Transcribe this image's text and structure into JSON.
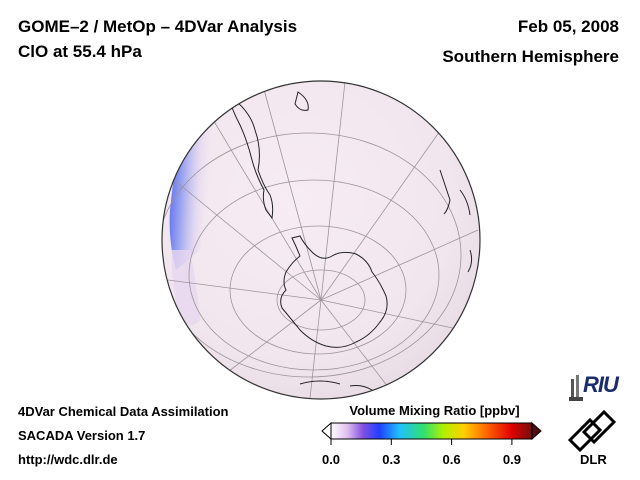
{
  "header": {
    "title_line1": "GOME–2 / MetOp – 4DVar Analysis",
    "title_line2": "ClO at 55.4 hPa",
    "date": "Feb 05, 2008",
    "region": "Southern Hemisphere"
  },
  "footer": {
    "line1": "4DVar Chemical Data Assimilation",
    "line2": "SACADA Version 1.7",
    "line3": "http://wdc.dlr.de"
  },
  "colorbar": {
    "title": "Volume Mixing Ratio [ppbv]",
    "ticks": [
      "0.0",
      "0.3",
      "0.6",
      "0.9"
    ],
    "tick_values": [
      0.0,
      0.3,
      0.6,
      0.9
    ],
    "range": [
      0.0,
      1.0
    ],
    "colors": [
      "#ffffff",
      "#e8c8f0",
      "#8a50d8",
      "#3040ff",
      "#20c0ff",
      "#30e080",
      "#b0f000",
      "#ffd000",
      "#ff6000",
      "#e00000",
      "#701010"
    ]
  },
  "map": {
    "projection": "orthographic",
    "feature": "Antarctica",
    "field": "ClO volume mixing ratio"
  },
  "logos": {
    "riu": "RIU",
    "dlr": "DLR"
  }
}
